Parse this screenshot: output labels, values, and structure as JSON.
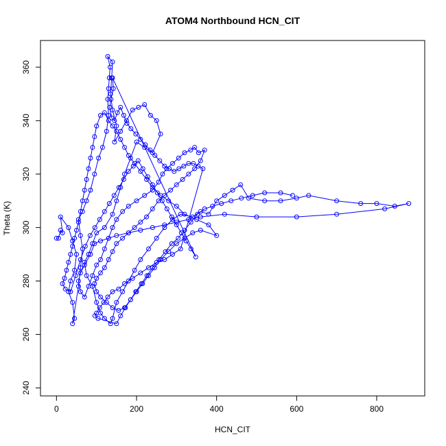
{
  "chart_data": {
    "type": "scatter",
    "title": "ATOM4 Northbound HCN_CIT",
    "xlabel": "HCN_CIT",
    "ylabel": "Theta (K)",
    "xlim": [
      -40,
      920
    ],
    "ylim": [
      237,
      370
    ],
    "xticks": [
      0,
      200,
      400,
      600,
      800
    ],
    "yticks": [
      240,
      260,
      280,
      300,
      320,
      340,
      360
    ],
    "grid": false,
    "series": [
      {
        "color": "#0000ff",
        "marker": "open-circle",
        "connected": true,
        "points": [
          [
            0,
            296
          ],
          [
            5,
            296
          ],
          [
            10,
            299
          ],
          [
            15,
            298
          ],
          [
            10,
            304
          ],
          [
            30,
            300
          ],
          [
            40,
            295
          ],
          [
            50,
            290
          ],
          [
            45,
            284
          ],
          [
            35,
            280
          ],
          [
            30,
            276
          ],
          [
            40,
            272
          ],
          [
            45,
            266
          ],
          [
            40,
            264
          ],
          [
            55,
            278
          ],
          [
            60,
            285
          ],
          [
            65,
            292
          ],
          [
            60,
            297
          ],
          [
            55,
            303
          ],
          [
            65,
            306
          ],
          [
            75,
            310
          ],
          [
            85,
            314
          ],
          [
            95,
            320
          ],
          [
            105,
            326
          ],
          [
            115,
            330
          ],
          [
            125,
            336
          ],
          [
            130,
            342
          ],
          [
            128,
            348
          ],
          [
            130,
            352
          ],
          [
            132,
            356
          ],
          [
            134,
            360
          ],
          [
            128,
            364
          ],
          [
            140,
            362
          ],
          [
            138,
            356
          ],
          [
            135,
            350
          ],
          [
            140,
            344
          ],
          [
            150,
            338
          ],
          [
            145,
            332
          ],
          [
            160,
            336
          ],
          [
            175,
            340
          ],
          [
            190,
            344
          ],
          [
            205,
            345
          ],
          [
            220,
            346
          ],
          [
            235,
            342
          ],
          [
            250,
            340
          ],
          [
            260,
            335
          ],
          [
            240,
            328
          ],
          [
            220,
            330
          ],
          [
            200,
            332
          ],
          [
            185,
            326
          ],
          [
            170,
            320
          ],
          [
            160,
            315
          ],
          [
            150,
            310
          ],
          [
            140,
            305
          ],
          [
            120,
            300
          ],
          [
            100,
            298
          ],
          [
            90,
            294
          ],
          [
            80,
            290
          ],
          [
            70,
            287
          ],
          [
            75,
            282
          ],
          [
            90,
            278
          ],
          [
            100,
            272
          ],
          [
            110,
            268
          ],
          [
            120,
            266
          ],
          [
            135,
            264
          ],
          [
            140,
            266
          ],
          [
            150,
            272
          ],
          [
            165,
            276
          ],
          [
            180,
            280
          ],
          [
            195,
            284
          ],
          [
            210,
            288
          ],
          [
            230,
            292
          ],
          [
            250,
            296
          ],
          [
            270,
            300
          ],
          [
            290,
            303
          ],
          [
            310,
            305
          ],
          [
            340,
            304
          ],
          [
            360,
            306
          ],
          [
            380,
            305
          ],
          [
            400,
            310
          ],
          [
            420,
            312
          ],
          [
            440,
            314
          ],
          [
            460,
            316
          ],
          [
            480,
            311
          ],
          [
            520,
            310
          ],
          [
            560,
            310
          ],
          [
            600,
            311
          ],
          [
            630,
            312
          ],
          [
            700,
            310
          ],
          [
            760,
            309
          ],
          [
            800,
            309
          ],
          [
            845,
            308
          ],
          [
            880,
            309
          ],
          [
            820,
            307
          ],
          [
            700,
            305
          ],
          [
            600,
            304
          ],
          [
            500,
            304
          ],
          [
            420,
            305
          ],
          [
            360,
            304
          ],
          [
            330,
            303
          ],
          [
            300,
            302
          ],
          [
            270,
            301
          ],
          [
            240,
            300
          ],
          [
            210,
            299
          ],
          [
            180,
            298
          ],
          [
            150,
            297
          ],
          [
            130,
            296
          ],
          [
            110,
            295
          ],
          [
            95,
            294
          ],
          [
            85,
            290
          ],
          [
            70,
            286
          ],
          [
            60,
            283
          ],
          [
            55,
            280
          ],
          [
            60,
            276
          ],
          [
            70,
            274
          ],
          [
            80,
            278
          ],
          [
            90,
            282
          ],
          [
            100,
            286
          ],
          [
            110,
            288
          ],
          [
            120,
            292
          ],
          [
            130,
            296
          ],
          [
            140,
            300
          ],
          [
            150,
            303
          ],
          [
            165,
            306
          ],
          [
            180,
            308
          ],
          [
            200,
            310
          ],
          [
            220,
            312
          ],
          [
            240,
            314
          ],
          [
            255,
            317
          ],
          [
            265,
            320
          ],
          [
            275,
            322
          ],
          [
            290,
            324
          ],
          [
            305,
            326
          ],
          [
            320,
            328
          ],
          [
            335,
            329
          ],
          [
            345,
            330
          ],
          [
            355,
            328
          ],
          [
            370,
            329
          ],
          [
            360,
            325
          ],
          [
            345,
            322
          ],
          [
            330,
            320
          ],
          [
            315,
            318
          ],
          [
            300,
            316
          ],
          [
            285,
            314
          ],
          [
            270,
            312
          ],
          [
            255,
            310
          ],
          [
            240,
            307
          ],
          [
            225,
            304
          ],
          [
            210,
            302
          ],
          [
            195,
            300
          ],
          [
            180,
            298
          ],
          [
            165,
            296
          ],
          [
            150,
            294
          ],
          [
            140,
            291
          ],
          [
            130,
            288
          ],
          [
            120,
            285
          ],
          [
            110,
            283
          ],
          [
            100,
            281
          ],
          [
            95,
            279
          ],
          [
            100,
            276
          ],
          [
            110,
            274
          ],
          [
            125,
            272
          ],
          [
            140,
            270
          ],
          [
            155,
            269
          ],
          [
            170,
            270
          ],
          [
            185,
            273
          ],
          [
            200,
            276
          ],
          [
            215,
            279
          ],
          [
            230,
            282
          ],
          [
            245,
            285
          ],
          [
            260,
            288
          ],
          [
            280,
            291
          ],
          [
            300,
            294
          ],
          [
            320,
            296
          ],
          [
            340,
            298
          ],
          [
            360,
            299
          ],
          [
            400,
            297
          ],
          [
            380,
            301
          ],
          [
            350,
            303
          ],
          [
            320,
            305
          ],
          [
            300,
            308
          ],
          [
            280,
            310
          ],
          [
            260,
            312
          ],
          [
            240,
            315
          ],
          [
            225,
            318
          ],
          [
            210,
            321
          ],
          [
            195,
            324
          ],
          [
            180,
            327
          ],
          [
            170,
            330
          ],
          [
            160,
            333
          ],
          [
            150,
            336
          ],
          [
            140,
            338
          ],
          [
            130,
            340
          ],
          [
            120,
            343
          ],
          [
            110,
            342
          ],
          [
            100,
            338
          ],
          [
            95,
            334
          ],
          [
            90,
            330
          ],
          [
            85,
            326
          ],
          [
            80,
            322
          ],
          [
            75,
            318
          ],
          [
            70,
            314
          ],
          [
            65,
            310
          ],
          [
            60,
            306
          ],
          [
            55,
            302
          ],
          [
            50,
            299
          ],
          [
            45,
            296
          ],
          [
            40,
            293
          ],
          [
            35,
            290
          ],
          [
            30,
            287
          ],
          [
            25,
            284
          ],
          [
            20,
            281
          ],
          [
            15,
            279
          ],
          [
            22,
            277
          ],
          [
            35,
            276
          ],
          [
            48,
            282
          ],
          [
            60,
            288
          ],
          [
            72,
            293
          ],
          [
            84,
            297
          ],
          [
            96,
            300
          ],
          [
            108,
            303
          ],
          [
            120,
            306
          ],
          [
            132,
            309
          ],
          [
            144,
            312
          ],
          [
            156,
            315
          ],
          [
            168,
            318
          ],
          [
            180,
            321
          ],
          [
            192,
            323
          ],
          [
            204,
            325
          ],
          [
            216,
            322
          ],
          [
            228,
            319
          ],
          [
            240,
            316
          ],
          [
            252,
            313
          ],
          [
            264,
            310
          ],
          [
            276,
            307
          ],
          [
            288,
            304
          ],
          [
            300,
            301
          ],
          [
            312,
            298
          ],
          [
            324,
            295
          ],
          [
            336,
            292
          ],
          [
            348,
            289
          ],
          [
            140,
            356
          ],
          [
            142,
            352
          ],
          [
            136,
            348
          ],
          [
            133,
            345
          ],
          [
            138,
            341
          ],
          [
            145,
            340
          ],
          [
            152,
            343
          ],
          [
            160,
            345
          ],
          [
            168,
            342
          ],
          [
            176,
            339
          ],
          [
            186,
            337
          ],
          [
            198,
            335
          ],
          [
            210,
            333
          ],
          [
            222,
            331
          ],
          [
            234,
            329
          ],
          [
            246,
            327
          ],
          [
            258,
            325
          ],
          [
            270,
            323
          ],
          [
            282,
            322
          ],
          [
            294,
            321
          ],
          [
            306,
            322
          ],
          [
            318,
            323
          ],
          [
            330,
            324
          ],
          [
            342,
            324
          ],
          [
            354,
            323
          ],
          [
            366,
            322
          ],
          [
            310,
            292
          ],
          [
            290,
            290
          ],
          [
            270,
            288
          ],
          [
            250,
            287
          ],
          [
            230,
            285
          ],
          [
            210,
            283
          ],
          [
            190,
            281
          ],
          [
            170,
            279
          ],
          [
            155,
            277
          ],
          [
            140,
            276
          ],
          [
            128,
            274
          ],
          [
            118,
            272
          ],
          [
            108,
            270
          ],
          [
            100,
            268
          ],
          [
            96,
            267
          ],
          [
            104,
            266
          ],
          [
            150,
            264
          ],
          [
            160,
            267
          ],
          [
            172,
            270
          ],
          [
            185,
            273
          ],
          [
            198,
            276
          ],
          [
            212,
            279
          ],
          [
            226,
            282
          ],
          [
            240,
            285
          ],
          [
            256,
            288
          ],
          [
            272,
            291
          ],
          [
            288,
            294
          ],
          [
            304,
            296
          ],
          [
            320,
            299
          ],
          [
            336,
            302
          ],
          [
            352,
            305
          ],
          [
            370,
            307
          ],
          [
            390,
            308
          ],
          [
            412,
            309
          ],
          [
            436,
            310
          ],
          [
            462,
            311
          ],
          [
            490,
            312
          ],
          [
            520,
            313
          ],
          [
            560,
            313
          ],
          [
            590,
            312
          ]
        ]
      }
    ]
  }
}
